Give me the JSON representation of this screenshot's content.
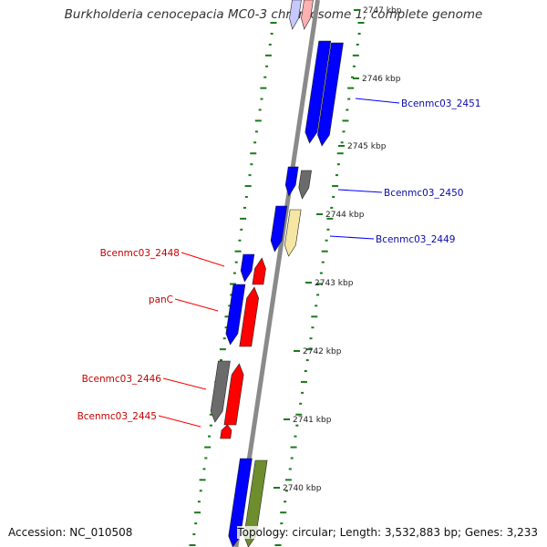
{
  "title": "Burkholderia cenocepacia MC0-3 chromosome 1, complete genome",
  "footer": {
    "accession": "Accession: NC_010508",
    "topology": "Topology: circular; Length: 3,532,883 bp; Genes: 3,233"
  },
  "colors": {
    "forward": "#0000ff",
    "reverse": "#ff0000",
    "grey": "#6b6b6b",
    "yellow": "#f5e6a3",
    "olive": "#6e8e2e",
    "label_forward": "#0a0aa8",
    "label_reverse": "#c40000",
    "tick_green": "#1a7a1a"
  },
  "ticks": [
    "2747 kbp",
    "2746 kbp",
    "2745 kbp",
    "2744 kbp",
    "2743 kbp",
    "2742 kbp",
    "2741 kbp",
    "2740 kbp"
  ],
  "labels": {
    "right": [
      "Bcenmc03_2451",
      "Bcenmc03_2450",
      "Bcenmc03_2449"
    ],
    "left": [
      "Bcenmc03_2448",
      "panC",
      "Bcenmc03_2446",
      "Bcenmc03_2445"
    ]
  }
}
